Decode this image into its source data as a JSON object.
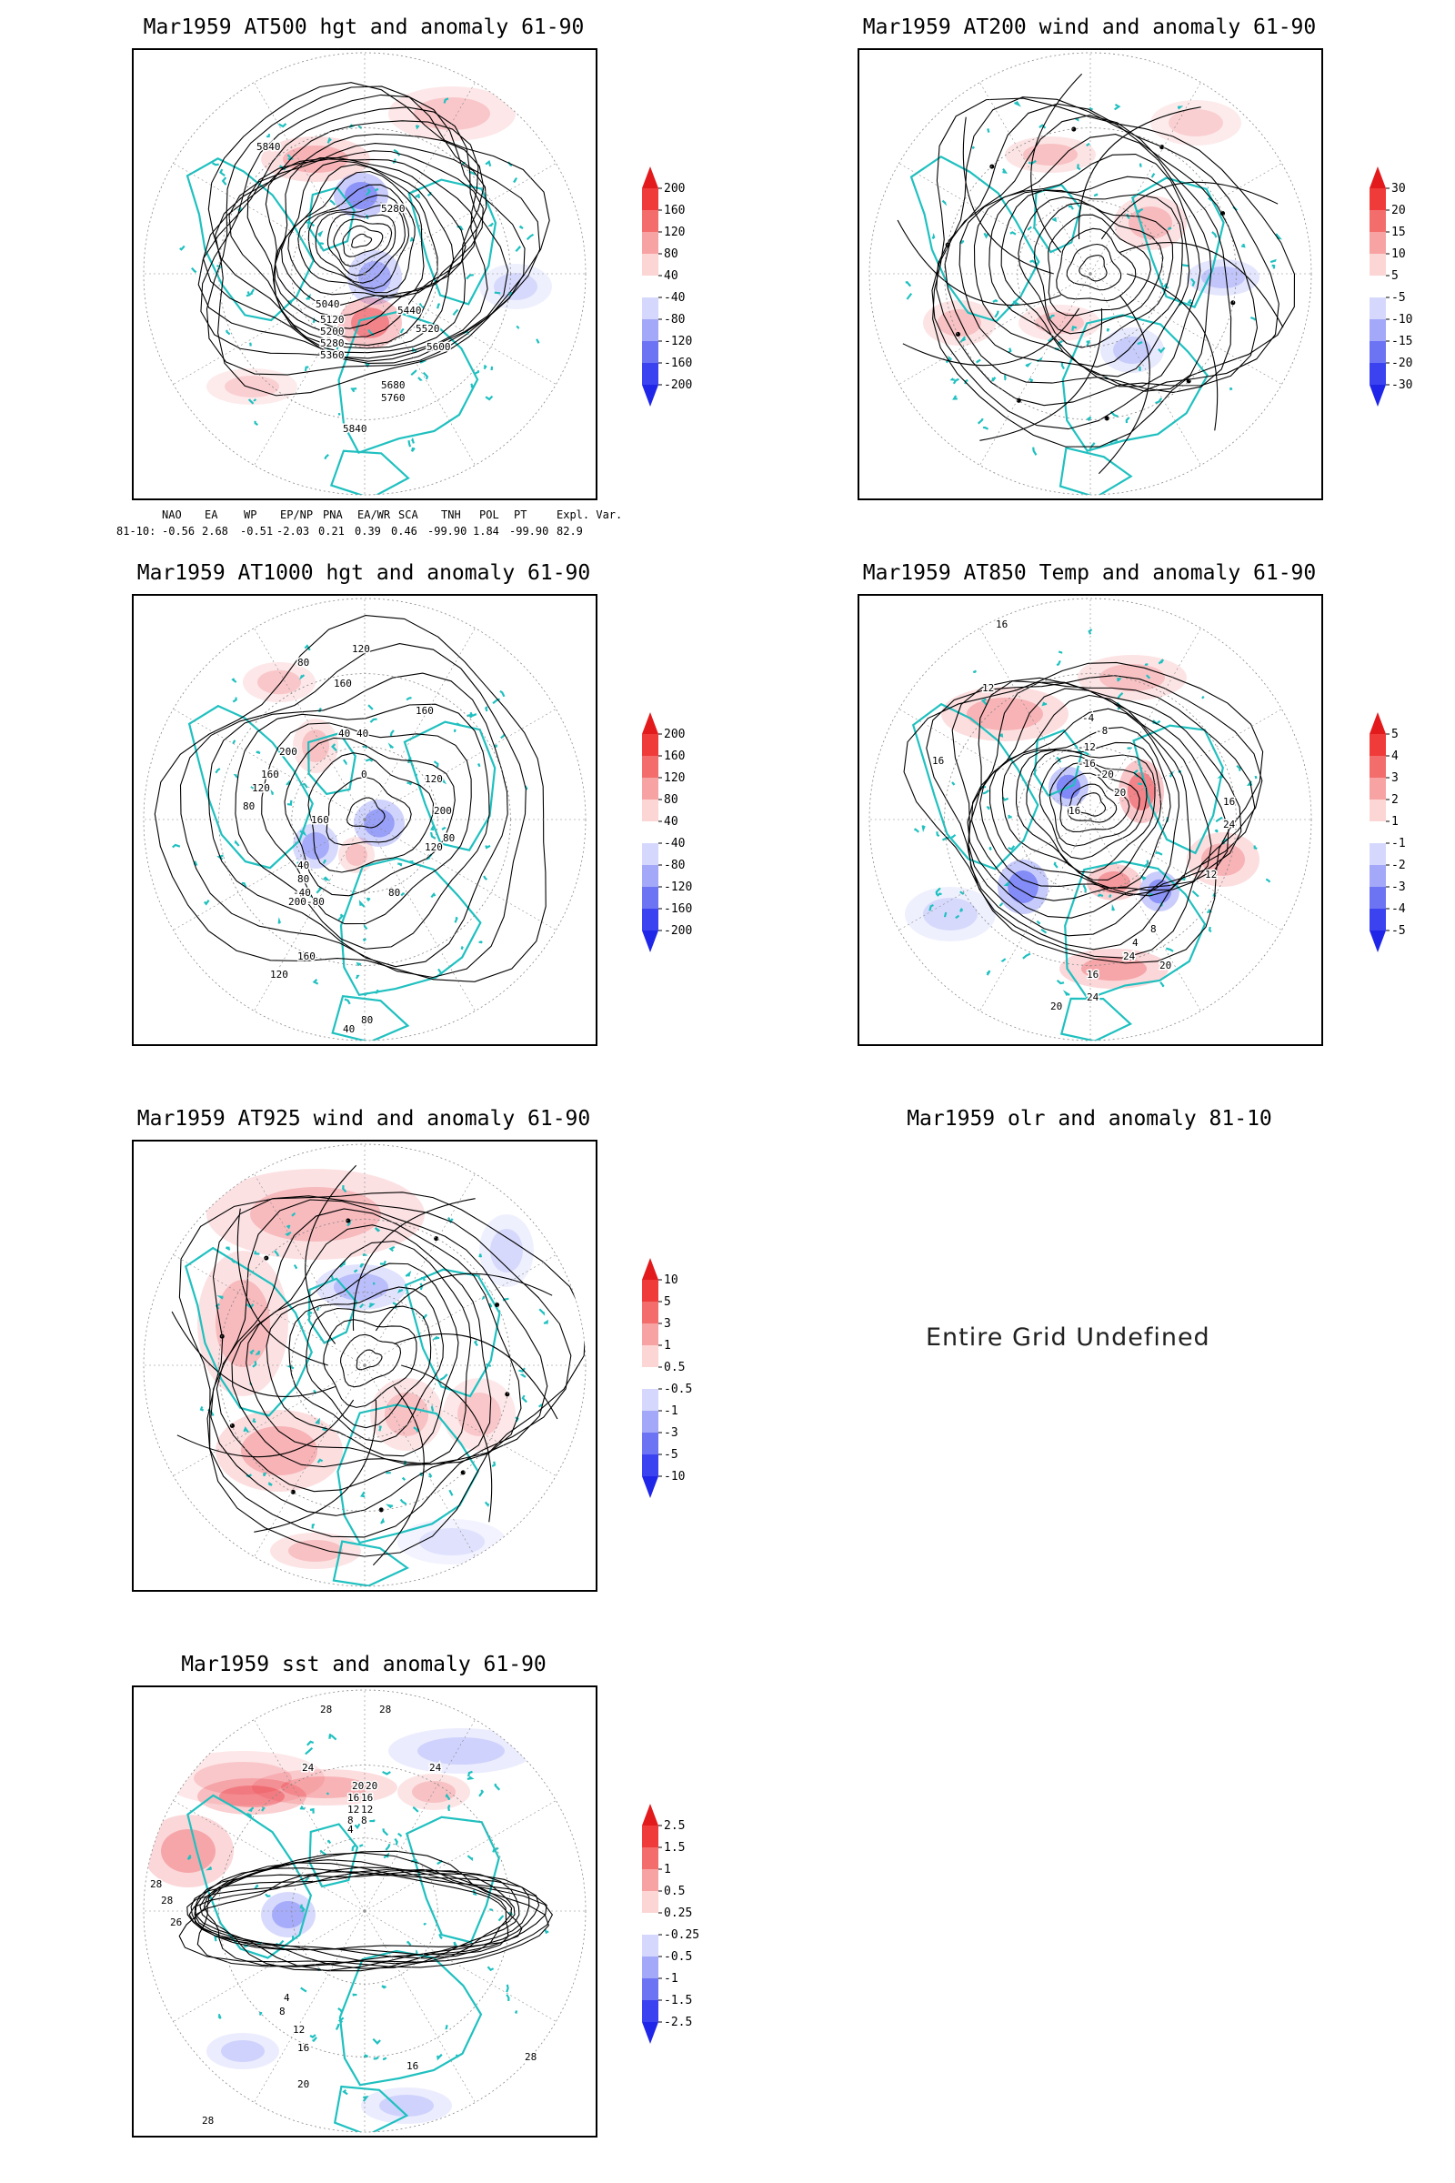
{
  "panels": [
    {
      "title": "Mar1959 AT500 hgt and anomaly 61-90",
      "labels": [
        "5840",
        "5280",
        "5040",
        "5120",
        "5200",
        "5280",
        "5360",
        "5440",
        "5520",
        "5600",
        "5680",
        "5760",
        "5840"
      ],
      "colorbar": {
        "levels": [
          "200",
          "160",
          "120",
          "80",
          "40",
          "-40",
          "-80",
          "-120",
          "-160",
          "-200"
        ]
      }
    },
    {
      "title": "Mar1959 AT200 wind and anomaly 61-90",
      "colorbar": {
        "levels": [
          "30",
          "20",
          "15",
          "10",
          "5",
          "-5",
          "-10",
          "-15",
          "-20",
          "-30"
        ]
      }
    },
    {
      "title": "Mar1959 AT1000 hgt and anomaly 61-90",
      "labels": [
        "120",
        "80",
        "160",
        "160",
        "40",
        "40",
        "200",
        "160",
        "120",
        "80",
        "0",
        "120",
        "160",
        "200",
        "80",
        "120",
        "40",
        "80",
        "-40",
        "-80",
        "200",
        "160",
        "120",
        "80",
        "40",
        "80"
      ],
      "colorbar": {
        "levels": [
          "200",
          "160",
          "120",
          "80",
          "40",
          "-40",
          "-80",
          "-120",
          "-160",
          "-200"
        ]
      }
    },
    {
      "title": "Mar1959 AT850 Temp and anomaly 61-90",
      "labels": [
        "16",
        "12",
        "16",
        "-4",
        "-8",
        "-12",
        "-16",
        "-20",
        "20",
        "16",
        "24",
        "16",
        "12",
        "8",
        "4",
        "24",
        "20",
        "16",
        "24",
        "20"
      ],
      "colorbar": {
        "levels": [
          "5",
          "4",
          "3",
          "2",
          "1",
          "-1",
          "-2",
          "-3",
          "-4",
          "-5"
        ]
      }
    },
    {
      "title": "Mar1959 AT925 wind and anomaly 61-90",
      "colorbar": {
        "levels": [
          "10",
          "5",
          "3",
          "1",
          "0.5",
          "-0.5",
          "-1",
          "-3",
          "-5",
          "-10"
        ]
      }
    },
    {
      "title": "Mar1959 olr and anomaly 81-10",
      "message": "Entire Grid Undefined"
    },
    {
      "title": "Mar1959 sst and anomaly 61-90",
      "labels": [
        "28",
        "28",
        "24",
        "24",
        "20",
        "20",
        "16",
        "16",
        "12",
        "12",
        "8",
        "8",
        "4",
        "28",
        "28",
        "26",
        "8",
        "4",
        "12",
        "16",
        "20",
        "16",
        "28",
        "28"
      ],
      "colorbar": {
        "levels": [
          "2.5",
          "1.5",
          "1",
          "0.5",
          "0.25",
          "-0.25",
          "-0.5",
          "-1",
          "-1.5",
          "-2.5"
        ]
      }
    }
  ],
  "indices": {
    "header": [
      "NAO",
      "EA",
      "WP",
      "EP/NP",
      "PNA",
      "EA/WR",
      "SCA",
      "TNH",
      "POL",
      "PT",
      "Expl. Var."
    ],
    "row_label": "81-10:",
    "values": [
      "-0.56",
      "2.68",
      "-0.51",
      "-2.03",
      "0.21",
      "0.39",
      "0.46",
      "-99.90",
      "1.84",
      "-99.90",
      "82.9"
    ]
  },
  "colors": {
    "positive": "#e8202a",
    "negative": "#2030f0",
    "coast": "#20c0c0",
    "contour": "#000000"
  }
}
